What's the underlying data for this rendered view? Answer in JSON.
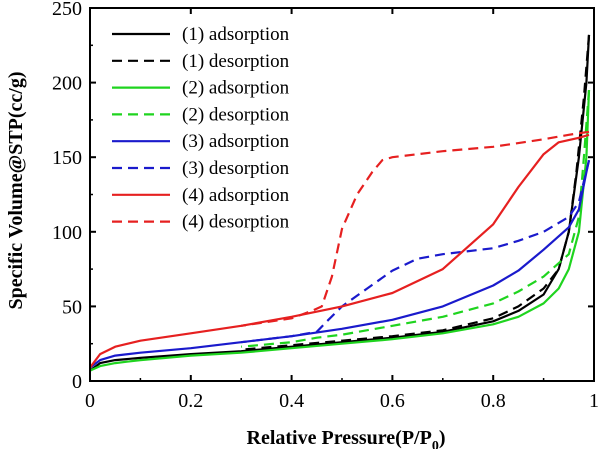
{
  "chart_data": {
    "type": "line",
    "xlabel": "Relative Pressure(P/P",
    "xlabel_sub": "0",
    "xlabel_suffix": ")",
    "ylabel": "Specific Volume@STP(cc/g)",
    "xlim": [
      0,
      1
    ],
    "ylim": [
      0,
      250
    ],
    "xticks": [
      0,
      0.2,
      0.4,
      0.6,
      0.8,
      1
    ],
    "xtick_labels": [
      "0",
      "0.2",
      "0.4",
      "0.6",
      "0.8",
      "1"
    ],
    "yticks": [
      0,
      50,
      100,
      150,
      200,
      250
    ],
    "ytick_labels": [
      "0",
      "50",
      "100",
      "150",
      "200",
      "250"
    ],
    "grid": false,
    "legend_position": "top-left",
    "series": [
      {
        "name": "(1) adsorption",
        "color": "#000000",
        "dash": "solid",
        "points": [
          [
            0.0,
            7
          ],
          [
            0.02,
            12
          ],
          [
            0.05,
            14
          ],
          [
            0.1,
            15.5
          ],
          [
            0.2,
            18
          ],
          [
            0.3,
            20
          ],
          [
            0.4,
            23
          ],
          [
            0.5,
            26
          ],
          [
            0.6,
            29
          ],
          [
            0.7,
            33
          ],
          [
            0.8,
            40
          ],
          [
            0.85,
            47
          ],
          [
            0.9,
            58
          ],
          [
            0.93,
            75
          ],
          [
            0.95,
            100
          ],
          [
            0.97,
            150
          ],
          [
            0.985,
            200
          ],
          [
            0.99,
            232
          ]
        ]
      },
      {
        "name": "(1) desorption",
        "color": "#000000",
        "dash": "dashed",
        "points": [
          [
            0.99,
            232
          ],
          [
            0.98,
            190
          ],
          [
            0.965,
            140
          ],
          [
            0.95,
            100
          ],
          [
            0.93,
            75
          ],
          [
            0.9,
            62
          ],
          [
            0.85,
            50
          ],
          [
            0.8,
            42
          ],
          [
            0.7,
            34
          ],
          [
            0.6,
            30
          ],
          [
            0.5,
            27
          ],
          [
            0.4,
            24
          ],
          [
            0.3,
            21
          ]
        ]
      },
      {
        "name": "(2) adsorption",
        "color": "#1fd41f",
        "dash": "solid",
        "points": [
          [
            0.0,
            7
          ],
          [
            0.02,
            10
          ],
          [
            0.05,
            12
          ],
          [
            0.1,
            14
          ],
          [
            0.2,
            17
          ],
          [
            0.3,
            19
          ],
          [
            0.4,
            22
          ],
          [
            0.5,
            25
          ],
          [
            0.6,
            28
          ],
          [
            0.7,
            32
          ],
          [
            0.8,
            38
          ],
          [
            0.85,
            43
          ],
          [
            0.9,
            52
          ],
          [
            0.93,
            62
          ],
          [
            0.95,
            75
          ],
          [
            0.97,
            100
          ],
          [
            0.985,
            150
          ],
          [
            0.99,
            195
          ]
        ]
      },
      {
        "name": "(2) desorption",
        "color": "#1fd41f",
        "dash": "dashed",
        "points": [
          [
            0.99,
            195
          ],
          [
            0.98,
            150
          ],
          [
            0.97,
            110
          ],
          [
            0.95,
            85
          ],
          [
            0.9,
            70
          ],
          [
            0.85,
            60
          ],
          [
            0.8,
            52
          ],
          [
            0.7,
            43
          ],
          [
            0.6,
            37
          ],
          [
            0.5,
            31
          ],
          [
            0.45,
            29
          ],
          [
            0.4,
            26
          ],
          [
            0.3,
            23
          ]
        ]
      },
      {
        "name": "(3) adsorption",
        "color": "#1a1acc",
        "dash": "solid",
        "points": [
          [
            0.0,
            9
          ],
          [
            0.02,
            14
          ],
          [
            0.05,
            17
          ],
          [
            0.1,
            19
          ],
          [
            0.2,
            22
          ],
          [
            0.3,
            26
          ],
          [
            0.4,
            30
          ],
          [
            0.5,
            35
          ],
          [
            0.6,
            41
          ],
          [
            0.7,
            50
          ],
          [
            0.8,
            64
          ],
          [
            0.85,
            74
          ],
          [
            0.9,
            88
          ],
          [
            0.95,
            103
          ],
          [
            0.97,
            115
          ],
          [
            0.985,
            140
          ],
          [
            0.99,
            148
          ]
        ]
      },
      {
        "name": "(3) desorption",
        "color": "#1a1acc",
        "dash": "dashed",
        "points": [
          [
            0.99,
            148
          ],
          [
            0.97,
            120
          ],
          [
            0.95,
            110
          ],
          [
            0.9,
            100
          ],
          [
            0.85,
            94
          ],
          [
            0.8,
            89
          ],
          [
            0.7,
            85
          ],
          [
            0.65,
            82
          ],
          [
            0.6,
            74
          ],
          [
            0.55,
            62
          ],
          [
            0.5,
            50
          ],
          [
            0.47,
            40
          ],
          [
            0.45,
            33
          ],
          [
            0.4,
            30
          ],
          [
            0.3,
            26
          ]
        ]
      },
      {
        "name": "(4) adsorption",
        "color": "#e62020",
        "dash": "solid",
        "points": [
          [
            0.0,
            9
          ],
          [
            0.02,
            18
          ],
          [
            0.05,
            23
          ],
          [
            0.1,
            27
          ],
          [
            0.2,
            32
          ],
          [
            0.3,
            37
          ],
          [
            0.4,
            43
          ],
          [
            0.5,
            50
          ],
          [
            0.6,
            59
          ],
          [
            0.7,
            75
          ],
          [
            0.8,
            105
          ],
          [
            0.85,
            130
          ],
          [
            0.9,
            152
          ],
          [
            0.93,
            160
          ],
          [
            0.97,
            163
          ],
          [
            0.99,
            165
          ]
        ]
      },
      {
        "name": "(4) desorption",
        "color": "#e62020",
        "dash": "dashed",
        "points": [
          [
            0.99,
            167
          ],
          [
            0.95,
            165
          ],
          [
            0.9,
            162
          ],
          [
            0.8,
            157
          ],
          [
            0.7,
            154
          ],
          [
            0.6,
            150
          ],
          [
            0.58,
            148
          ],
          [
            0.56,
            140
          ],
          [
            0.53,
            125
          ],
          [
            0.5,
            102
          ],
          [
            0.48,
            70
          ],
          [
            0.46,
            50
          ],
          [
            0.44,
            47
          ],
          [
            0.4,
            42
          ],
          [
            0.3,
            37
          ]
        ]
      }
    ]
  }
}
